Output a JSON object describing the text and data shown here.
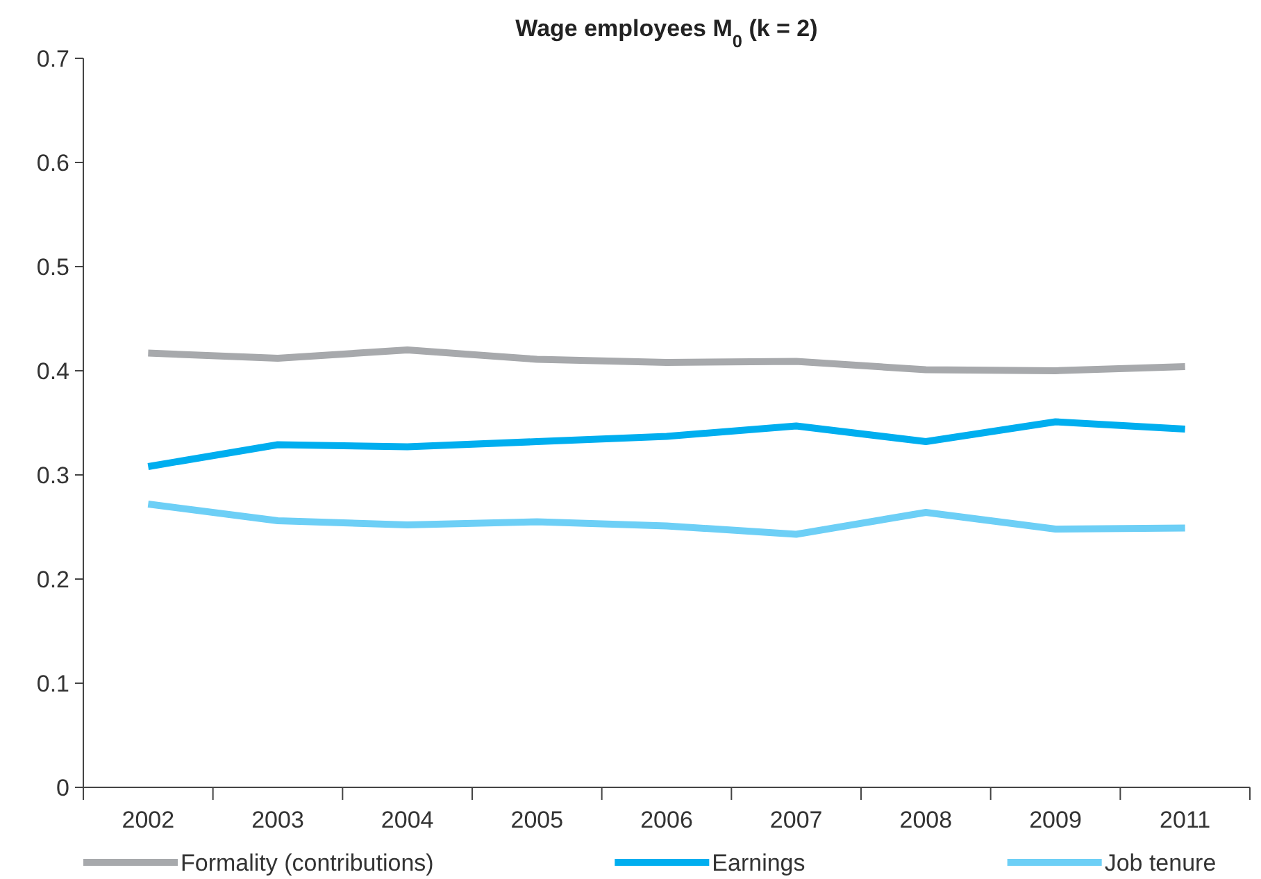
{
  "chart_data": {
    "type": "line",
    "title": "Wage employees M$_{0}$ (k = 2)",
    "categories": [
      "2002",
      "2003",
      "2004",
      "2005",
      "2006",
      "2007",
      "2008",
      "2009",
      "2011"
    ],
    "series": [
      {
        "name": "Formality (contributions)",
        "color": "#a7a9ac",
        "values": [
          0.417,
          0.412,
          0.42,
          0.411,
          0.408,
          0.409,
          0.401,
          0.4,
          0.404
        ]
      },
      {
        "name": "Earnings",
        "color": "#00aeef",
        "values": [
          0.308,
          0.329,
          0.327,
          0.332,
          0.337,
          0.347,
          0.332,
          0.351,
          0.344
        ]
      },
      {
        "name": "Job tenure",
        "color": "#6dcff6",
        "values": [
          0.272,
          0.256,
          0.252,
          0.255,
          0.251,
          0.243,
          0.264,
          0.248,
          0.249
        ]
      }
    ],
    "ylim": [
      0,
      0.7
    ],
    "yticks": [
      0,
      0.1,
      0.2,
      0.3,
      0.4,
      0.5,
      0.6,
      0.7
    ],
    "grid": false,
    "legend": "bottom",
    "marker": "none",
    "line_style": "solid"
  }
}
